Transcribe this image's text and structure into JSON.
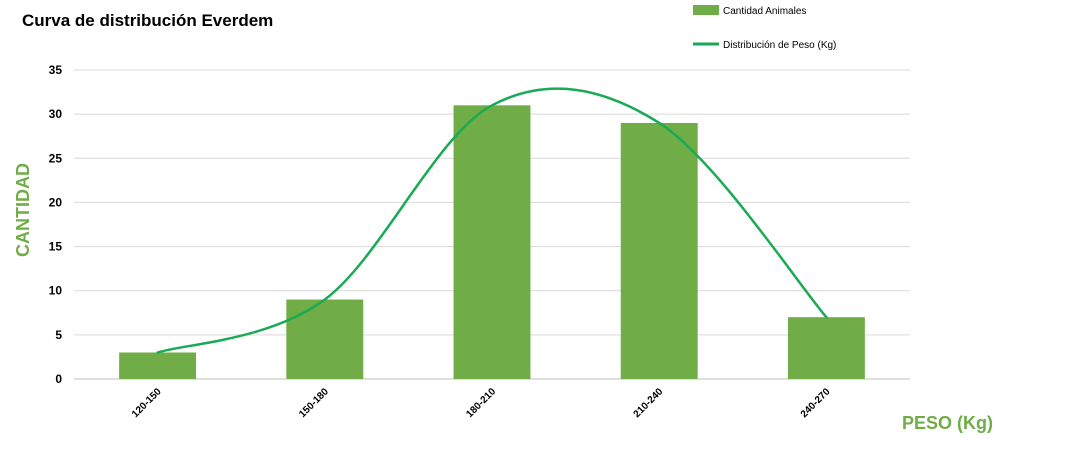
{
  "chart_data": {
    "type": "bar",
    "title": "Curva de distribución Everdem",
    "xlabel": "PESO (Kg)",
    "ylabel": "CANTIDAD",
    "categories": [
      "120-150",
      "150-180",
      "180-210",
      "210-240",
      "240-270"
    ],
    "series": [
      {
        "name": "Cantidad Animales",
        "type": "bar",
        "color": "#70AD47",
        "values": [
          3,
          9,
          31,
          29,
          7
        ]
      },
      {
        "name": "Distribución de Peso (Kg)",
        "type": "line",
        "smooth": true,
        "color": "#1AAA55",
        "values": [
          3,
          9,
          31,
          29,
          7
        ]
      }
    ],
    "yticks": [
      "0",
      "5",
      "10",
      "15",
      "20",
      "25",
      "30",
      "35"
    ],
    "ylim": [
      0,
      35
    ],
    "grid": true,
    "legend_position": "top-right",
    "axis_label_color": "#70AD47"
  }
}
